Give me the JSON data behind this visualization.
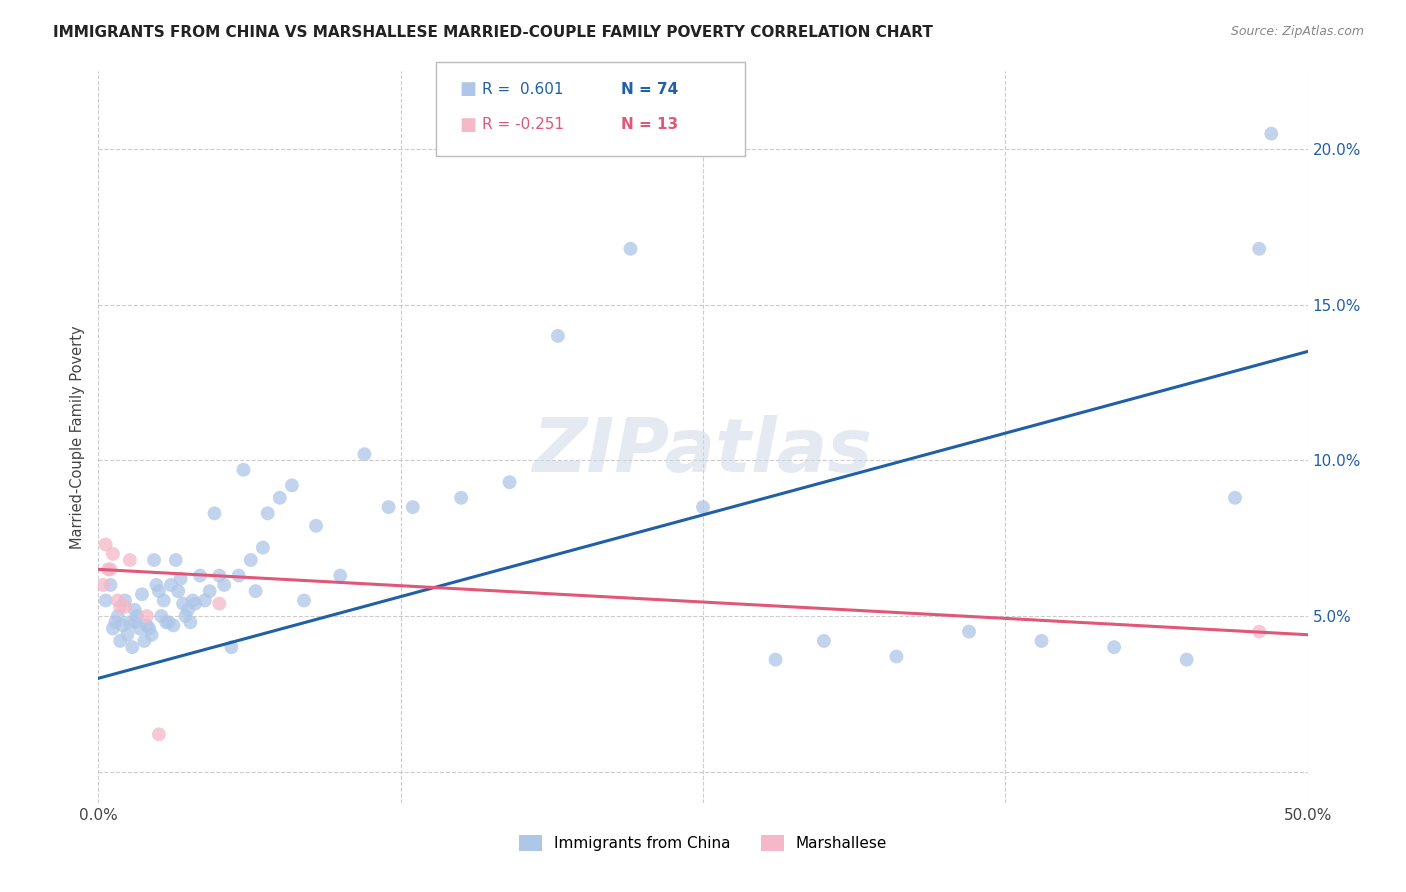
{
  "title": "IMMIGRANTS FROM CHINA VS MARSHALLESE MARRIED-COUPLE FAMILY POVERTY CORRELATION CHART",
  "source": "Source: ZipAtlas.com",
  "ylabel": "Married-Couple Family Poverty",
  "xlim": [
    0.0,
    0.5
  ],
  "ylim": [
    -0.01,
    0.225
  ],
  "xticks": [
    0.0,
    0.125,
    0.25,
    0.375,
    0.5
  ],
  "yticks": [
    0.0,
    0.05,
    0.1,
    0.15,
    0.2
  ],
  "ytick_labels": [
    "",
    "5.0%",
    "10.0%",
    "15.0%",
    "20.0%"
  ],
  "blue_color": "#aec6e8",
  "blue_line_color": "#2060a8",
  "pink_color": "#f4b8c8",
  "pink_line_color": "#e05878",
  "legend_blue_R": "R =  0.601",
  "legend_blue_N": "N = 74",
  "legend_pink_R": "R = -0.251",
  "legend_pink_N": "N = 13",
  "legend_label_blue": "Immigrants from China",
  "legend_label_pink": "Marshallese",
  "watermark": "ZIPatlas",
  "blue_x": [
    0.003,
    0.005,
    0.006,
    0.007,
    0.008,
    0.009,
    0.01,
    0.011,
    0.012,
    0.013,
    0.014,
    0.015,
    0.015,
    0.016,
    0.017,
    0.018,
    0.019,
    0.02,
    0.021,
    0.022,
    0.023,
    0.024,
    0.025,
    0.026,
    0.027,
    0.028,
    0.029,
    0.03,
    0.031,
    0.032,
    0.033,
    0.034,
    0.035,
    0.036,
    0.037,
    0.038,
    0.039,
    0.04,
    0.042,
    0.044,
    0.046,
    0.048,
    0.05,
    0.052,
    0.055,
    0.058,
    0.06,
    0.063,
    0.065,
    0.068,
    0.07,
    0.075,
    0.08,
    0.085,
    0.09,
    0.1,
    0.11,
    0.12,
    0.13,
    0.15,
    0.17,
    0.19,
    0.22,
    0.25,
    0.28,
    0.3,
    0.33,
    0.36,
    0.39,
    0.42,
    0.45,
    0.47,
    0.48,
    0.485
  ],
  "blue_y": [
    0.055,
    0.06,
    0.046,
    0.048,
    0.05,
    0.042,
    0.047,
    0.055,
    0.044,
    0.048,
    0.04,
    0.052,
    0.048,
    0.05,
    0.046,
    0.057,
    0.042,
    0.047,
    0.046,
    0.044,
    0.068,
    0.06,
    0.058,
    0.05,
    0.055,
    0.048,
    0.048,
    0.06,
    0.047,
    0.068,
    0.058,
    0.062,
    0.054,
    0.05,
    0.052,
    0.048,
    0.055,
    0.054,
    0.063,
    0.055,
    0.058,
    0.083,
    0.063,
    0.06,
    0.04,
    0.063,
    0.097,
    0.068,
    0.058,
    0.072,
    0.083,
    0.088,
    0.092,
    0.055,
    0.079,
    0.063,
    0.102,
    0.085,
    0.085,
    0.088,
    0.093,
    0.14,
    0.168,
    0.085,
    0.036,
    0.042,
    0.037,
    0.045,
    0.042,
    0.04,
    0.036,
    0.088,
    0.168,
    0.205
  ],
  "pink_x": [
    0.002,
    0.003,
    0.004,
    0.005,
    0.006,
    0.008,
    0.009,
    0.011,
    0.013,
    0.02,
    0.025,
    0.05,
    0.48
  ],
  "pink_y": [
    0.06,
    0.073,
    0.065,
    0.065,
    0.07,
    0.055,
    0.053,
    0.053,
    0.068,
    0.05,
    0.012,
    0.054,
    0.045
  ],
  "blue_trendline_x": [
    0.0,
    0.5
  ],
  "blue_trendline_y": [
    0.03,
    0.135
  ],
  "pink_trendline_x": [
    0.0,
    0.5
  ],
  "pink_trendline_y": [
    0.065,
    0.044
  ]
}
